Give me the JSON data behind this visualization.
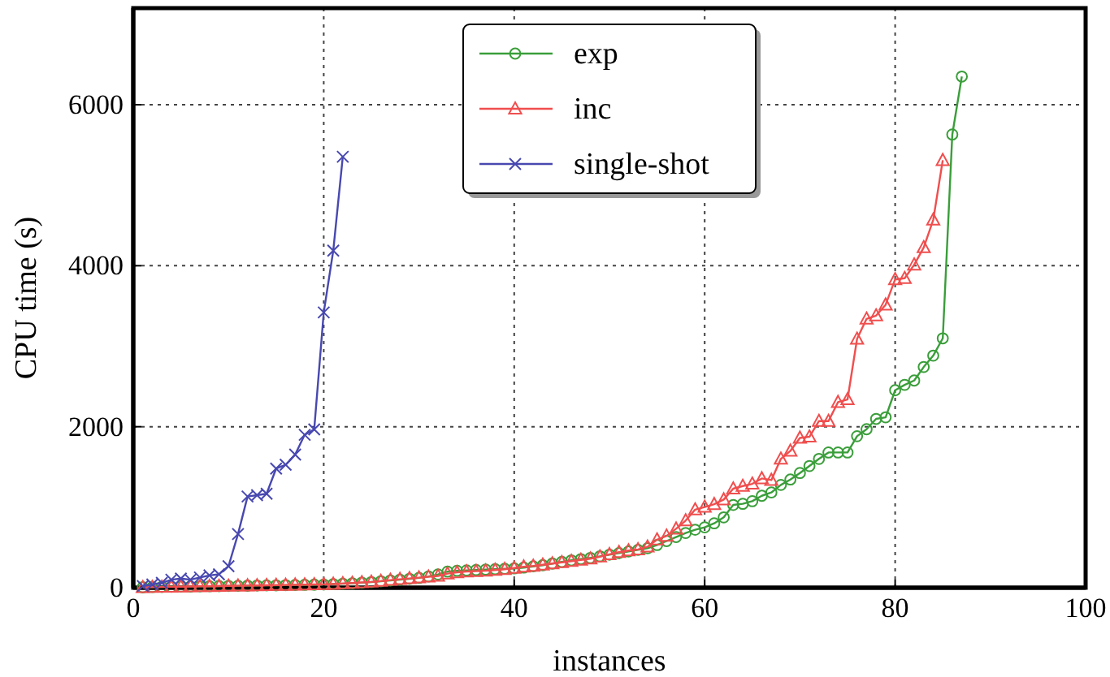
{
  "chart_data": {
    "type": "line",
    "xlabel": "instances",
    "ylabel": "CPU time (s)",
    "xlim": [
      0,
      100
    ],
    "ylim": [
      0,
      7200
    ],
    "xticks": [
      0,
      20,
      40,
      60,
      80,
      100
    ],
    "yticks": [
      0,
      2000,
      4000,
      6000
    ],
    "grid": true,
    "legend": "top",
    "line_style": "solid",
    "series": [
      {
        "name": "exp",
        "color": "#3a9e3a",
        "marker": "circle",
        "x": [
          1,
          2,
          3,
          4,
          5,
          6,
          7,
          8,
          9,
          10,
          11,
          12,
          13,
          14,
          15,
          16,
          17,
          18,
          19,
          20,
          21,
          22,
          23,
          24,
          25,
          26,
          27,
          28,
          29,
          30,
          31,
          32,
          33,
          34,
          35,
          36,
          37,
          38,
          39,
          40,
          41,
          42,
          43,
          44,
          45,
          46,
          47,
          48,
          49,
          50,
          51,
          52,
          53,
          54,
          55,
          56,
          57,
          58,
          59,
          60,
          61,
          62,
          63,
          64,
          65,
          66,
          67,
          68,
          69,
          70,
          71,
          72,
          73,
          74,
          75,
          76,
          77,
          78,
          79,
          80,
          81,
          82,
          83,
          84,
          85,
          86,
          87
        ],
        "values": [
          5,
          8,
          10,
          12,
          14,
          15,
          17,
          18,
          20,
          22,
          24,
          25,
          27,
          29,
          30,
          32,
          34,
          36,
          38,
          40,
          45,
          50,
          55,
          62,
          70,
          80,
          90,
          100,
          110,
          122,
          140,
          165,
          200,
          210,
          215,
          220,
          225,
          230,
          235,
          240,
          250,
          265,
          280,
          300,
          320,
          340,
          355,
          370,
          390,
          410,
          430,
          450,
          470,
          490,
          530,
          580,
          630,
          680,
          720,
          750,
          800,
          874,
          1028,
          1042,
          1075,
          1142,
          1183,
          1277,
          1344,
          1425,
          1512,
          1600,
          1680,
          1680,
          1680,
          1882,
          1969,
          2097,
          2117,
          2453,
          2520,
          2574,
          2742,
          2883,
          3098,
          5630,
          6350
        ]
      },
      {
        "name": "inc",
        "color": "#f04e4e",
        "marker": "triangle",
        "x": [
          1,
          2,
          3,
          4,
          5,
          6,
          7,
          8,
          9,
          10,
          11,
          12,
          13,
          14,
          15,
          16,
          17,
          18,
          19,
          20,
          21,
          22,
          23,
          24,
          25,
          26,
          27,
          28,
          29,
          30,
          31,
          32,
          33,
          34,
          35,
          36,
          37,
          38,
          39,
          40,
          41,
          42,
          43,
          44,
          45,
          46,
          47,
          48,
          49,
          50,
          51,
          52,
          53,
          54,
          55,
          56,
          57,
          58,
          59,
          60,
          61,
          62,
          63,
          64,
          65,
          66,
          67,
          68,
          69,
          70,
          71,
          72,
          73,
          74,
          75,
          76,
          77,
          78,
          79,
          80,
          81,
          82,
          83,
          84,
          85
        ],
        "values": [
          5,
          7,
          9,
          11,
          13,
          15,
          17,
          18,
          20,
          22,
          24,
          26,
          28,
          30,
          32,
          34,
          36,
          38,
          40,
          42,
          46,
          52,
          58,
          65,
          72,
          82,
          95,
          105,
          115,
          125,
          135,
          145,
          175,
          190,
          200,
          205,
          210,
          220,
          230,
          245,
          260,
          270,
          285,
          300,
          315,
          330,
          345,
          360,
          385,
          414,
          441,
          461,
          475,
          508,
          597,
          644,
          732,
          834,
          970,
          1003,
          1037,
          1095,
          1230,
          1263,
          1290,
          1357,
          1337,
          1600,
          1700,
          1861,
          1875,
          2070,
          2070,
          2305,
          2339,
          3091,
          3340,
          3380,
          3515,
          3830,
          3844,
          4012,
          4227,
          4570,
          5310
        ]
      },
      {
        "name": "single-shot",
        "color": "#4848b0",
        "marker": "cross",
        "x": [
          1,
          2,
          3,
          4,
          5,
          6,
          7,
          8,
          9,
          10,
          11,
          12,
          13,
          14,
          15,
          16,
          17,
          18,
          19,
          20,
          21,
          22
        ],
        "values": [
          20,
          40,
          60,
          100,
          113,
          100,
          127,
          153,
          167,
          267,
          667,
          1133,
          1150,
          1167,
          1480,
          1527,
          1653,
          1900,
          1967,
          3420,
          4187,
          5353
        ]
      }
    ]
  }
}
